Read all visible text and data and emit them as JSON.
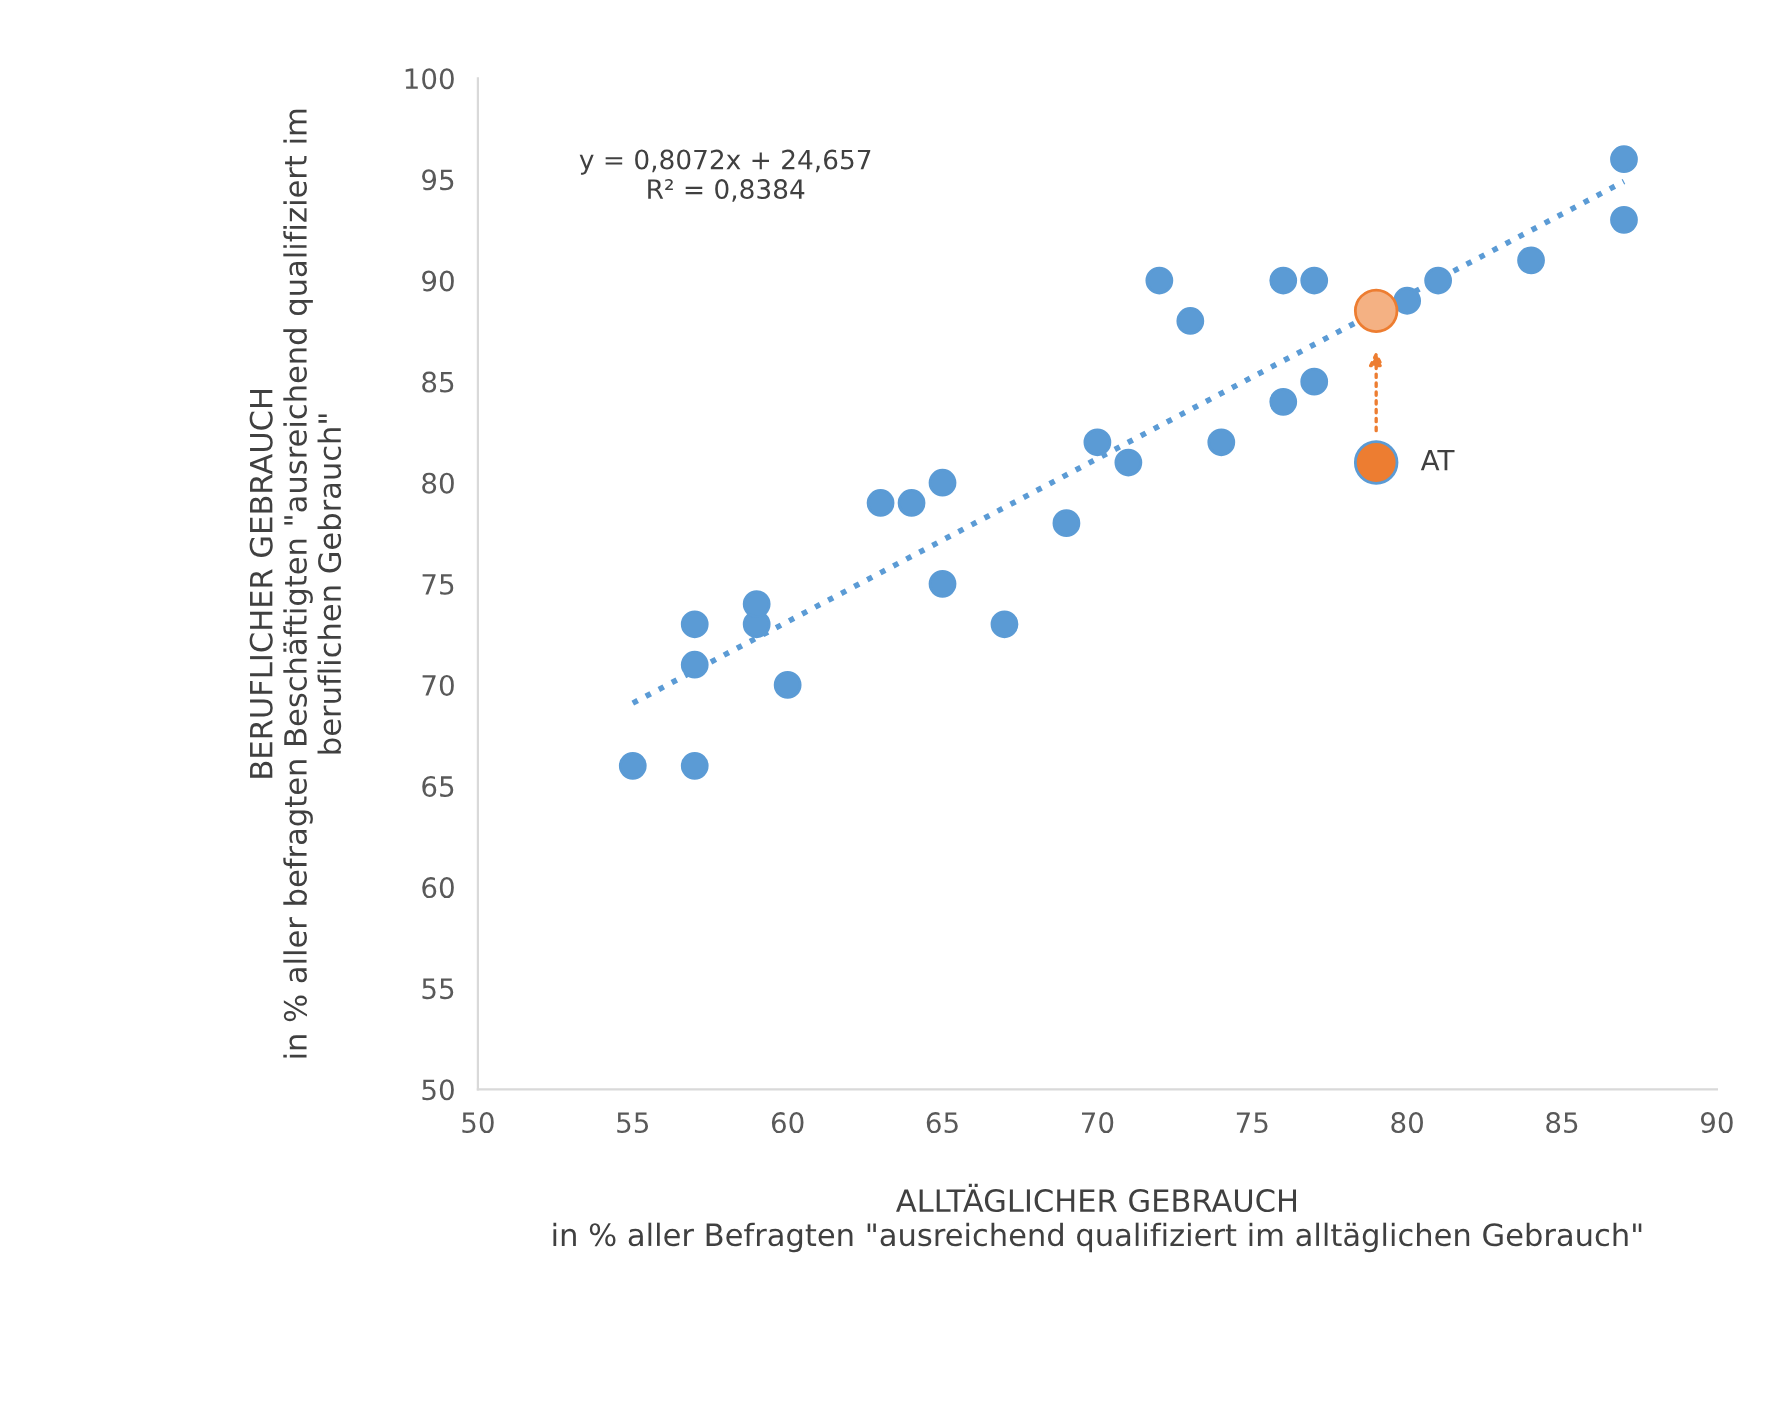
{
  "chart_data": {
    "type": "scatter",
    "xlabel": "ALLTÄGLICHER GEBRAUCH\nin % aller Befragten \"ausreichend qualifiziert im alltäglichen Gebrauch\"",
    "ylabel": "BERUFLICHER GEBRAUCH\nin % aller befragten Beschäftigten \"ausreichend qualifiziert im\nberuflichen Gebrauch\"",
    "xlim": [
      50,
      90
    ],
    "xticks": [
      50,
      55,
      60,
      65,
      70,
      75,
      80,
      85,
      90
    ],
    "ylim": [
      50,
      100
    ],
    "yticks": [
      50,
      55,
      60,
      65,
      70,
      75,
      80,
      85,
      90,
      95,
      100
    ],
    "grid": false,
    "legend": false,
    "marker": "circle",
    "series": [
      {
        "color": "#5b9bd5",
        "x": [
          55,
          57,
          57,
          57,
          59,
          59,
          60,
          63,
          64,
          65,
          65,
          67,
          69,
          70,
          71,
          72,
          73,
          74,
          76,
          76,
          77,
          77,
          80,
          81,
          84,
          87,
          87
        ],
        "values": [
          66,
          66,
          71,
          73,
          73,
          74,
          70,
          79,
          79,
          80,
          75,
          73,
          78,
          82,
          81,
          90,
          88,
          82,
          90,
          84,
          90,
          85,
          89,
          90,
          91,
          96,
          93
        ]
      },
      {
        "color": "#ed7d31",
        "x": [
          79
        ],
        "values": [
          81
        ]
      },
      {
        "color": "#f4b183",
        "x": [
          79
        ],
        "values": [
          88.5
        ]
      },
      {
        "type": "line",
        "color": "#5b9bd5",
        "line_style": "dotted",
        "marker": "none",
        "x": [
          55,
          87
        ],
        "values": [
          69.1,
          94.9
        ]
      }
    ],
    "annotations": [
      {
        "text": "AT",
        "x": 79,
        "y": 81
      },
      "y = 0,8072x + 24,657\nR² = 0,8384"
    ]
  }
}
